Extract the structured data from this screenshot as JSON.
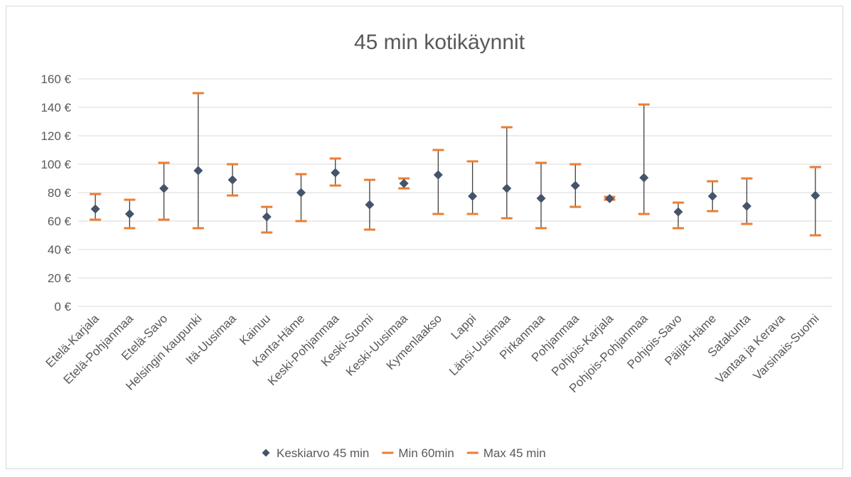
{
  "chart_data": {
    "type": "scatter",
    "title": "45 min kotikäynnit",
    "xlabel": "",
    "ylabel": "",
    "ylim": [
      0,
      160
    ],
    "y_ticks": [
      "0 €",
      "20 €",
      "40 €",
      "60 €",
      "80 €",
      "100 €",
      "120 €",
      "140 €",
      "160 €"
    ],
    "y_tick_values": [
      0,
      20,
      40,
      60,
      80,
      100,
      120,
      140,
      160
    ],
    "grid": true,
    "legend_position": "bottom",
    "categories": [
      "Etelä-Karjala",
      "Etelä-Pohjanmaa",
      "Etelä-Savo",
      "Helsingin kaupunki",
      "Itä-Uusimaa",
      "Kainuu",
      "Kanta-Häme",
      "Keski-Pohjanmaa",
      "Keski-Suomi",
      "Keski-Uusimaa",
      "Kymenlaakso",
      "Lappi",
      "Länsi-Uusimaa",
      "Pirkanmaa",
      "Pohjanmaa",
      "Pohjois-Karjala",
      "Pohjois-Pohjanmaa",
      "Pohjois-Savo",
      "Päijät-Häme",
      "Satakunta",
      "Vantaa ja Kerava",
      "Varsinais-Suomi"
    ],
    "series": [
      {
        "name": "Keskiarvo 45 min",
        "marker": "diamond",
        "color": "#44546a",
        "values": [
          68.5,
          65,
          83,
          95.5,
          89,
          63,
          80,
          94,
          71.5,
          86.5,
          92.5,
          77.5,
          83,
          76,
          85,
          75.8,
          90.5,
          66.5,
          77.5,
          70.5,
          null,
          78
        ]
      },
      {
        "name": "Min 60min",
        "marker": "dash",
        "color": "#ed7d31",
        "values": [
          61,
          55,
          61,
          55,
          78,
          52,
          60,
          85,
          54,
          83,
          65,
          65,
          62,
          55,
          70,
          75,
          65,
          55,
          67,
          58,
          null,
          50
        ]
      },
      {
        "name": "Max 45 min",
        "marker": "dash",
        "color": "#ed7d31",
        "values": [
          79,
          75,
          101,
          150,
          100,
          70,
          93,
          104,
          89,
          90,
          110,
          102,
          126,
          101,
          100,
          77,
          142,
          73,
          88,
          90,
          null,
          98
        ]
      }
    ],
    "colors": {
      "axis": "#d9d9d9",
      "grid": "#d9d9d9",
      "text": "#595959",
      "whisker": "#404040"
    }
  }
}
